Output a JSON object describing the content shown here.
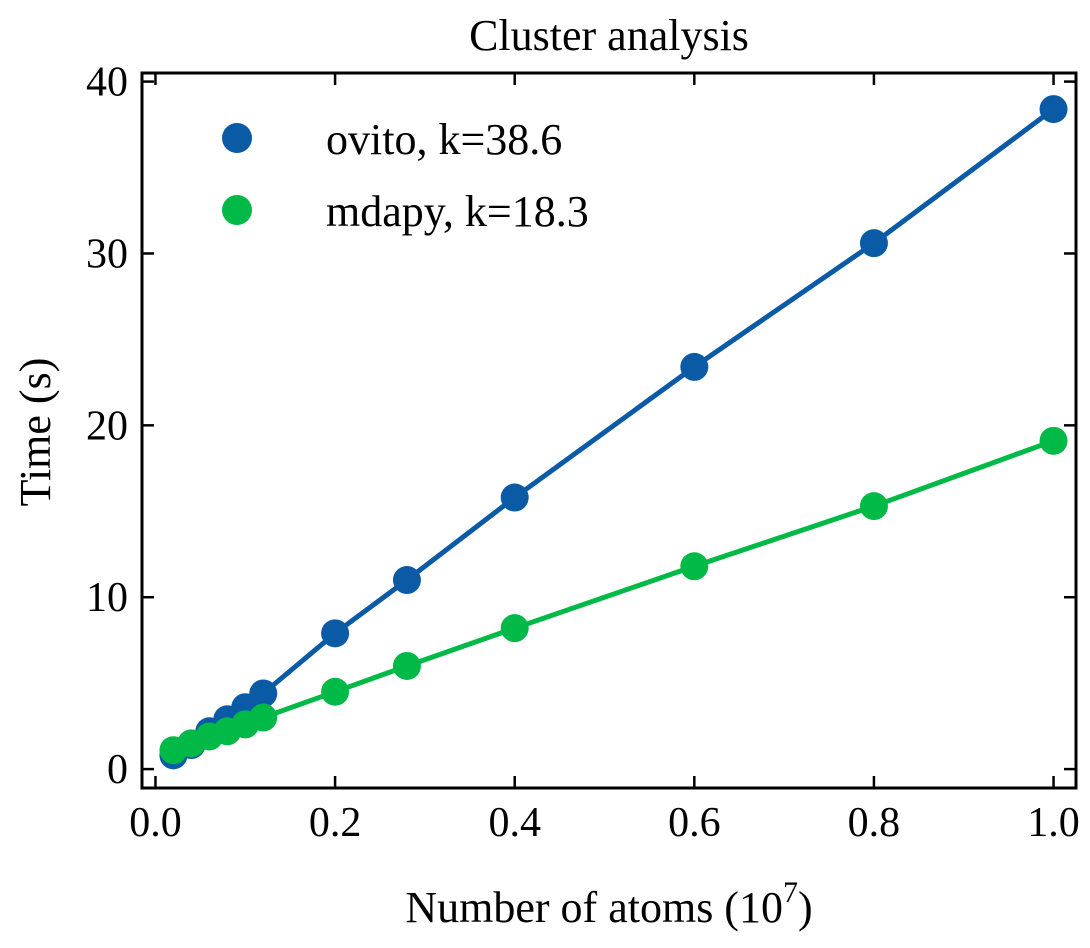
{
  "chart_data": {
    "type": "line",
    "title": "Cluster analysis",
    "xlabel_text": "Number of atoms (10",
    "xlabel_exponent": "7",
    "xlabel_close": ")",
    "ylabel": "Time (s)",
    "xlim": [
      -0.015,
      1.025
    ],
    "ylim": [
      -1.1,
      40.5
    ],
    "xticks": [
      0.0,
      0.2,
      0.4,
      0.6,
      0.8,
      1.0
    ],
    "xtick_labels": [
      "0.0",
      "0.2",
      "0.4",
      "0.6",
      "0.8",
      "1.0"
    ],
    "yticks": [
      0,
      10,
      20,
      30,
      40
    ],
    "ytick_labels": [
      "0",
      "10",
      "20",
      "30",
      "40"
    ],
    "legend_position": "top-left",
    "grid": false,
    "series": [
      {
        "name": "ovito, k=38.6",
        "color": "#0b5aa6",
        "x": [
          0.02,
          0.04,
          0.06,
          0.08,
          0.1,
          0.12,
          0.2,
          0.28,
          0.4,
          0.6,
          0.8,
          1.0
        ],
        "y": [
          0.8,
          1.4,
          2.2,
          2.9,
          3.6,
          4.4,
          7.9,
          11.0,
          15.8,
          23.4,
          30.6,
          38.4
        ]
      },
      {
        "name": "mdapy, k=18.3",
        "color": "#00b946",
        "x": [
          0.02,
          0.04,
          0.06,
          0.08,
          0.1,
          0.12,
          0.2,
          0.28,
          0.4,
          0.6,
          0.8,
          1.0
        ],
        "y": [
          1.1,
          1.5,
          1.9,
          2.2,
          2.6,
          3.0,
          4.5,
          6.0,
          8.2,
          11.8,
          15.3,
          19.1
        ]
      }
    ]
  }
}
